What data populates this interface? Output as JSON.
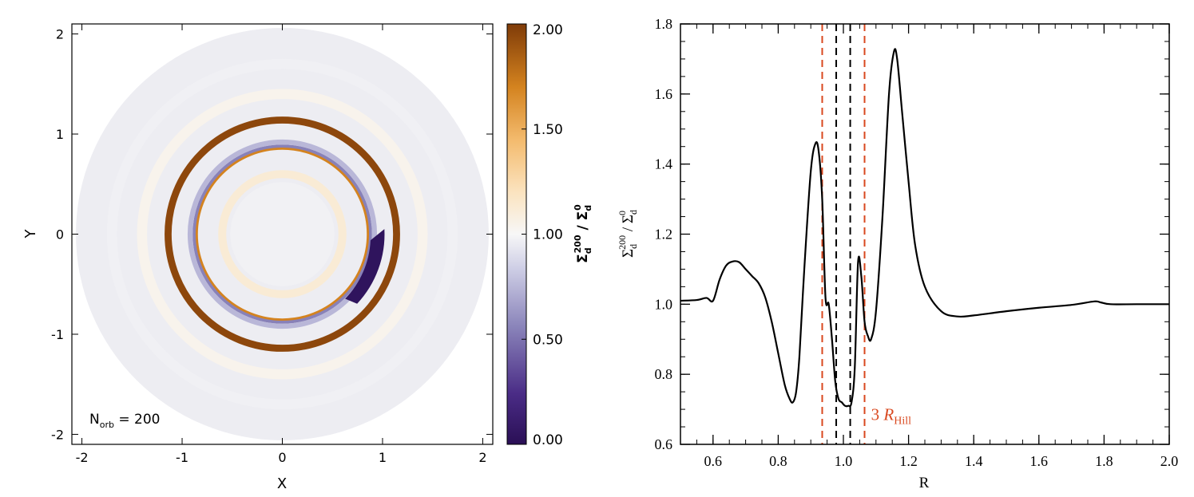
{
  "colors": {
    "cmap_low": "#2a0f55",
    "cmap_mid": "#f7f7f7",
    "cmap_high": "#7f3b08",
    "line": "#000000",
    "dash_outer": "#d9481f",
    "dash_inner": "#000000"
  },
  "chart_data": [
    {
      "type": "heatmap",
      "title": "",
      "xlabel": "X",
      "ylabel": "Y",
      "xlim": [
        -2.1,
        2.1
      ],
      "ylim": [
        -2.1,
        2.1
      ],
      "xticks": [
        "-2",
        "-1",
        "0",
        "1",
        "2"
      ],
      "yticks": [
        "-2",
        "-1",
        "0",
        "1",
        "2"
      ],
      "annotation": {
        "base": "N",
        "sub": "orb",
        "rest": " = 200"
      },
      "colorbar": {
        "label_main": "Σ",
        "label_sub": "d",
        "label_sup": "200",
        "label_sep": " / ",
        "label_main2": "Σ",
        "label_sub2": "d",
        "label_sup2": "0",
        "range": [
          0,
          2
        ],
        "ticks": [
          "0.00",
          "0.50",
          "1.00",
          "1.50",
          "2.00"
        ]
      },
      "rings": [
        {
          "r": 1.14,
          "value": 1.95,
          "width": 0.07
        },
        {
          "r": 0.86,
          "value": 1.7,
          "width": 0.035
        },
        {
          "r": 0.88,
          "value": 0.55,
          "width": 0.03
        },
        {
          "r": 0.92,
          "value": 0.75,
          "width": 0.05
        },
        {
          "r": 0.6,
          "value": 1.12,
          "width": 0.08
        },
        {
          "r": 1.4,
          "value": 1.04,
          "width": 0.1
        },
        {
          "r": 1.7,
          "value": 0.97,
          "width": 0.1
        }
      ],
      "disk_outer_radius": 2.06
    },
    {
      "type": "line",
      "title": "",
      "xlabel": "R",
      "ylabel_main": "Σ",
      "ylabel_sub": "d",
      "ylabel_sup": "200",
      "ylabel_sep": " / ",
      "ylabel_main2": "Σ",
      "ylabel_sub2": "d",
      "ylabel_sup2": "0",
      "xlim": [
        0.5,
        2.0
      ],
      "ylim": [
        0.6,
        1.8
      ],
      "xticks": [
        "0.6",
        "0.8",
        "1.0",
        "1.2",
        "1.4",
        "1.6",
        "1.8",
        "2.0"
      ],
      "yticks": [
        "0.6",
        "0.8",
        "1.0",
        "1.2",
        "1.4",
        "1.6",
        "1.8"
      ],
      "series": [
        {
          "x": [
            0.5,
            0.55,
            0.58,
            0.6,
            0.62,
            0.64,
            0.66,
            0.68,
            0.7,
            0.72,
            0.74,
            0.76,
            0.78,
            0.8,
            0.82,
            0.835,
            0.845,
            0.855,
            0.865,
            0.88,
            0.9,
            0.915,
            0.925,
            0.935,
            0.945,
            0.955,
            0.965,
            0.975,
            0.985,
            0.995,
            1.005,
            1.015,
            1.025,
            1.035,
            1.045,
            1.055,
            1.065,
            1.075,
            1.085,
            1.1,
            1.12,
            1.14,
            1.155,
            1.165,
            1.18,
            1.2,
            1.22,
            1.25,
            1.3,
            1.35,
            1.4,
            1.5,
            1.6,
            1.7,
            1.77,
            1.79,
            1.82,
            1.9,
            2.0
          ],
          "y": [
            1.01,
            1.012,
            1.018,
            1.01,
            1.07,
            1.11,
            1.122,
            1.12,
            1.1,
            1.08,
            1.06,
            1.02,
            0.95,
            0.86,
            0.77,
            0.73,
            0.72,
            0.75,
            0.85,
            1.1,
            1.38,
            1.46,
            1.43,
            1.3,
            1.02,
            1.0,
            0.9,
            0.78,
            0.73,
            0.72,
            0.71,
            0.71,
            0.72,
            0.82,
            1.12,
            1.08,
            0.95,
            0.91,
            0.9,
            0.98,
            1.25,
            1.6,
            1.72,
            1.7,
            1.55,
            1.35,
            1.17,
            1.05,
            0.98,
            0.965,
            0.968,
            0.98,
            0.99,
            0.998,
            1.008,
            1.005,
            1.0,
            1.0,
            1.0
          ]
        }
      ],
      "vlines": [
        {
          "x": 0.935,
          "color": "dash_outer"
        },
        {
          "x": 0.978,
          "color": "dash_inner"
        },
        {
          "x": 1.021,
          "color": "dash_inner"
        },
        {
          "x": 1.065,
          "color": "dash_outer"
        }
      ],
      "annotation": {
        "pre": "3 ",
        "main": "R",
        "sub": "Hill",
        "x": 1.085,
        "y": 0.67
      }
    }
  ]
}
